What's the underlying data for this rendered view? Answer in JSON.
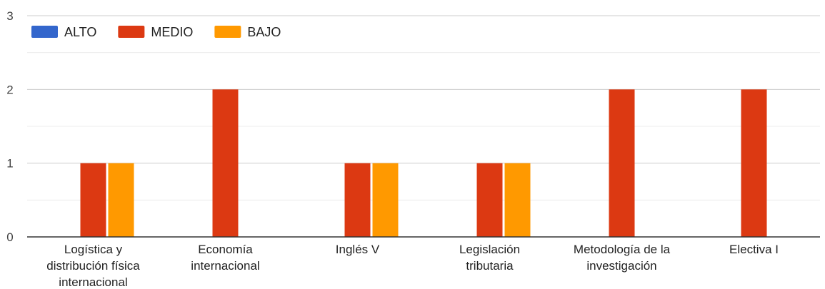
{
  "chart_data": {
    "type": "bar",
    "categories": [
      [
        "Logística y",
        "distribución física",
        "internacional"
      ],
      [
        "Economía",
        "internacional"
      ],
      [
        "Inglés V"
      ],
      [
        "Legislación",
        "tributaria"
      ],
      [
        "Metodología de la",
        "investigación"
      ],
      [
        "Electiva I"
      ]
    ],
    "series": [
      {
        "name": "ALTO",
        "color": "#3366cc",
        "values": [
          0,
          0,
          0,
          0,
          0,
          0
        ]
      },
      {
        "name": "MEDIO",
        "color": "#dc3912",
        "values": [
          1,
          2,
          1,
          1,
          2,
          2
        ]
      },
      {
        "name": "BAJO",
        "color": "#ff9900",
        "values": [
          1,
          0,
          1,
          1,
          0,
          0
        ]
      }
    ],
    "ylim": [
      0,
      3
    ],
    "yticks": [
      "0",
      "1",
      "2",
      "3"
    ],
    "grid": true,
    "legend_position": "top-left",
    "title": "",
    "xlabel": "",
    "ylabel": ""
  }
}
